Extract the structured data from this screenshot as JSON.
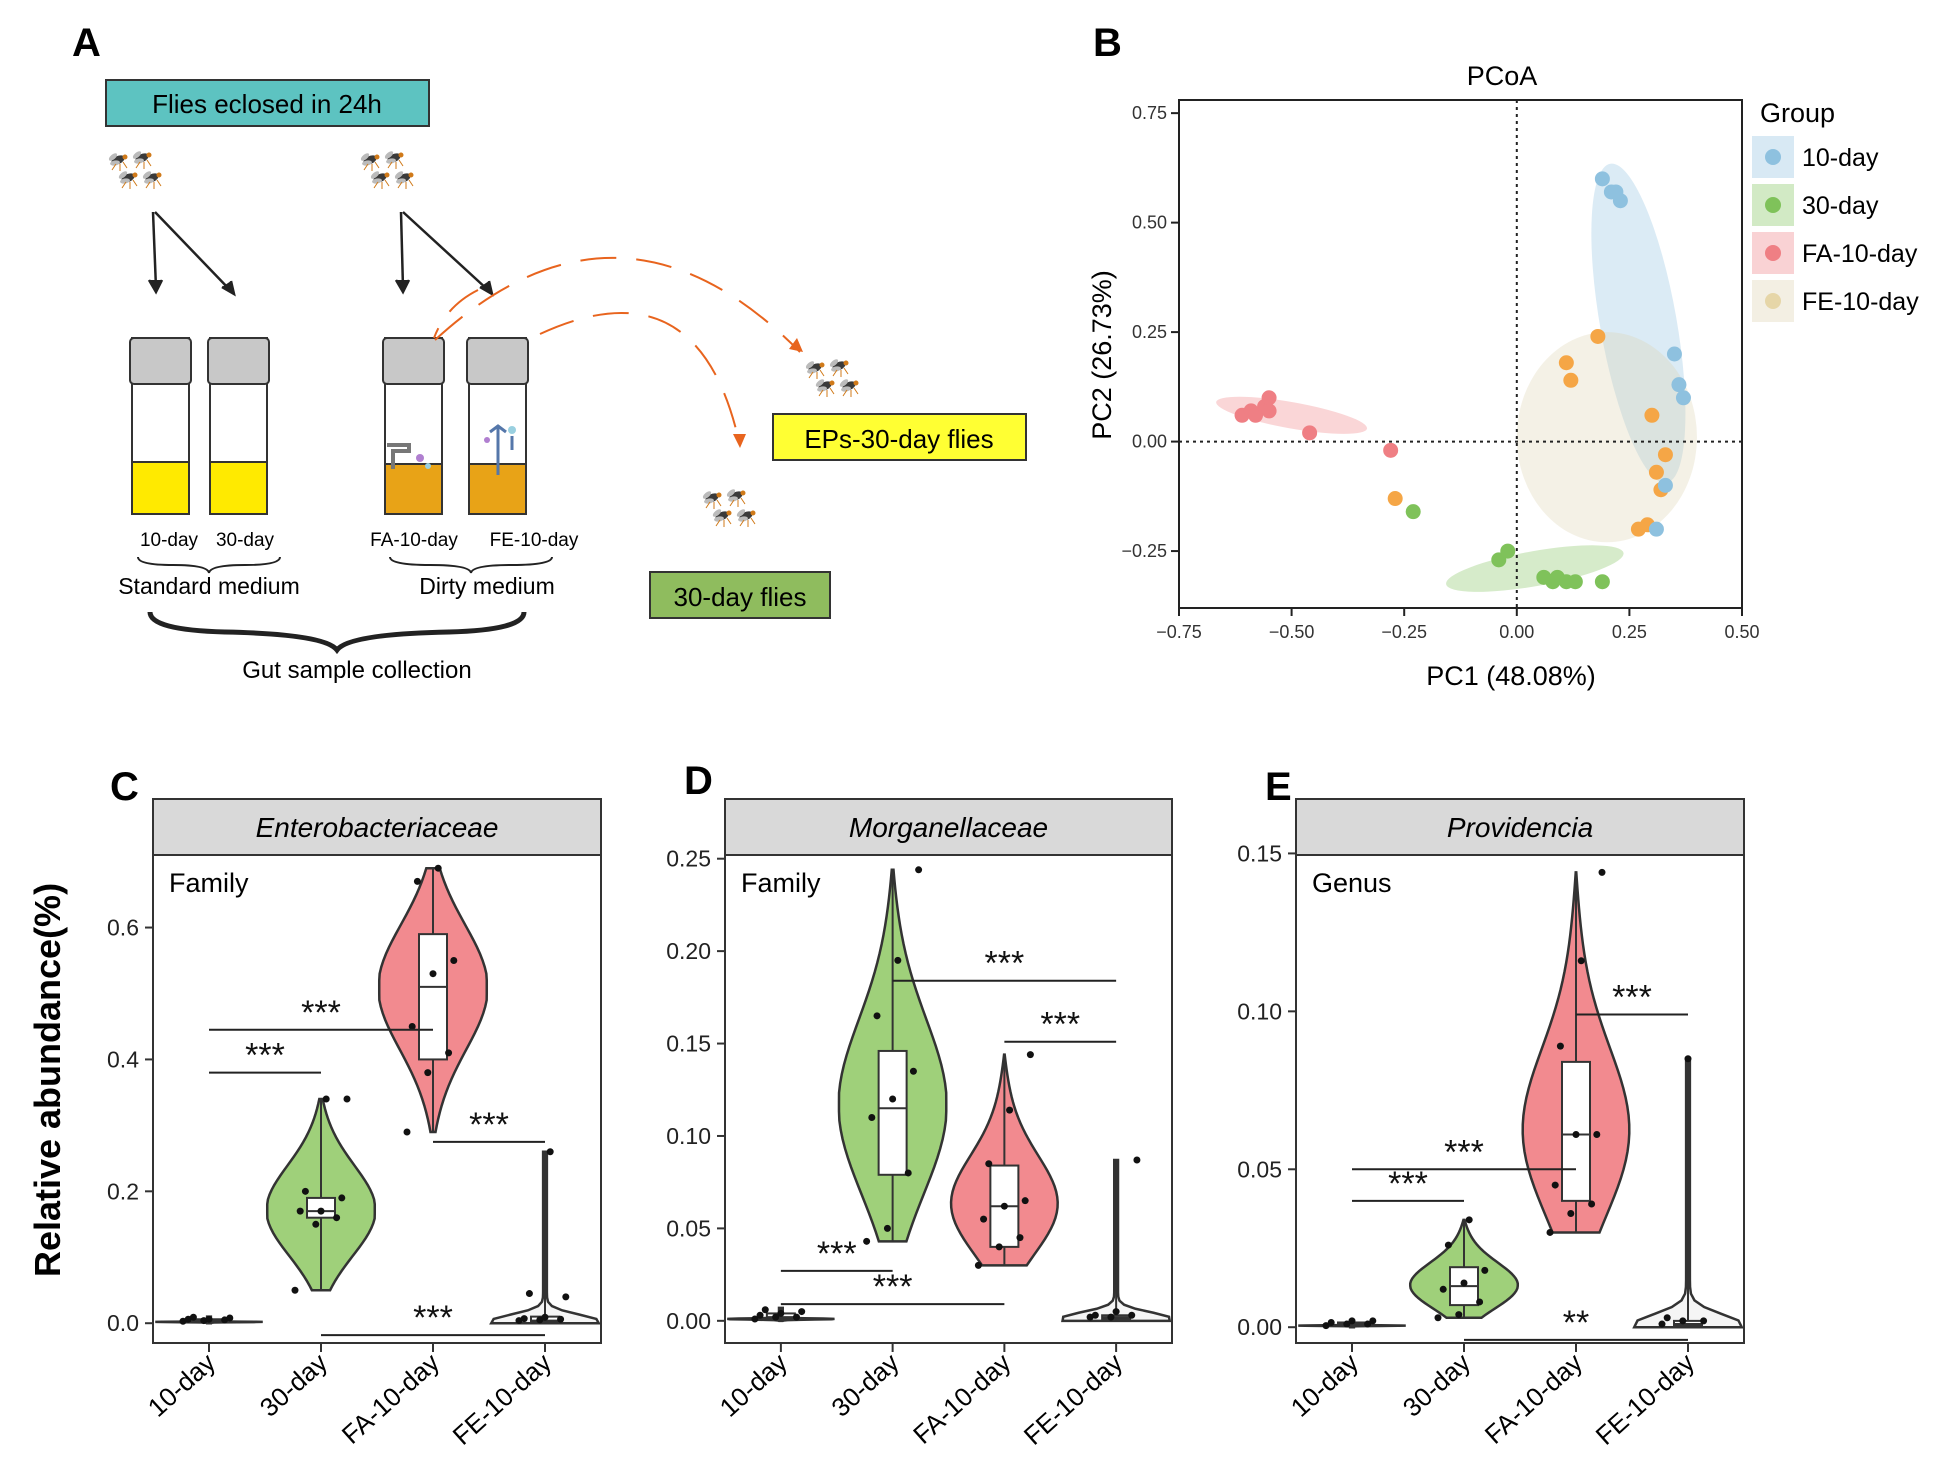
{
  "panel_letters": {
    "a": "A",
    "b": "B",
    "c": "C",
    "d": "D",
    "e": "E"
  },
  "schematic": {
    "eclosed_label": "Flies eclosed in  24h",
    "tube_labels": {
      "t10": "10-day",
      "t30": "30-day",
      "fa": "FA-10-day",
      "fe": "FE-10-day"
    },
    "standard_medium": "Standard medium",
    "dirty_medium": "Dirty medium",
    "gut_collection": "Gut  sample collection",
    "eps_label": "EPs-30-day flies",
    "flies30_label": "30-day flies",
    "colors": {
      "teal": "#5dc3c1",
      "yellow": "#ffff33",
      "green": "#8fbc5e",
      "medium_yellow": "#ffea00",
      "medium_dirty": "#e8a317",
      "arrow_orange": "#e8641e",
      "cap": "#c8c8c8"
    }
  },
  "groups": [
    {
      "name": "10-day",
      "color": "#8ec1df"
    },
    {
      "name": "30-day",
      "color": "#7fc25a"
    },
    {
      "name": "FA-10-day",
      "color": "#ef7f84"
    },
    {
      "name": "FE-10-day",
      "color": "#dcd2b0"
    }
  ],
  "chart_data": [
    {
      "type": "scatter",
      "title": "PCoA",
      "xlabel": "PC1 (48.08%)",
      "ylabel": "PC2 (26.73%)",
      "xlim": [
        -0.75,
        0.5
      ],
      "ylim": [
        -0.38,
        0.78
      ],
      "xticks": [
        "-0.75",
        "-0.50",
        "-0.25",
        "0.00",
        "0.25",
        "0.50"
      ],
      "yticks": [
        "-0.25",
        "0.00",
        "0.25",
        "0.50",
        "0.75"
      ],
      "legend_title": "Group",
      "series": [
        {
          "name": "10-day",
          "points": [
            [
              0.19,
              0.6
            ],
            [
              0.21,
              0.57
            ],
            [
              0.22,
              0.57
            ],
            [
              0.23,
              0.55
            ],
            [
              0.35,
              0.2
            ],
            [
              0.36,
              0.13
            ],
            [
              0.37,
              0.1
            ],
            [
              0.33,
              -0.1
            ],
            [
              0.31,
              -0.2
            ]
          ]
        },
        {
          "name": "30-day",
          "points": [
            [
              -0.23,
              -0.16
            ],
            [
              -0.04,
              -0.27
            ],
            [
              -0.02,
              -0.25
            ],
            [
              0.06,
              -0.31
            ],
            [
              0.08,
              -0.32
            ],
            [
              0.09,
              -0.31
            ],
            [
              0.11,
              -0.32
            ],
            [
              0.13,
              -0.32
            ],
            [
              0.19,
              -0.32
            ]
          ]
        },
        {
          "name": "FA-10-day",
          "points": [
            [
              -0.61,
              0.06
            ],
            [
              -0.59,
              0.07
            ],
            [
              -0.58,
              0.06
            ],
            [
              -0.56,
              0.08
            ],
            [
              -0.55,
              0.07
            ],
            [
              -0.55,
              0.1
            ],
            [
              -0.46,
              0.02
            ],
            [
              -0.28,
              -0.02
            ]
          ]
        },
        {
          "name": "FE-10-day",
          "points": [
            [
              -0.27,
              -0.13
            ],
            [
              0.11,
              0.18
            ],
            [
              0.12,
              0.14
            ],
            [
              0.18,
              0.24
            ],
            [
              0.3,
              0.06
            ],
            [
              0.31,
              -0.07
            ],
            [
              0.32,
              -0.11
            ],
            [
              0.33,
              -0.03
            ],
            [
              0.27,
              -0.2
            ],
            [
              0.29,
              -0.19
            ]
          ]
        }
      ],
      "ellipses": [
        {
          "group": "10-day",
          "center": [
            0.27,
            0.27
          ],
          "rx": 0.085,
          "ry": 0.37,
          "rotation_deg": -10
        },
        {
          "group": "30-day",
          "center": [
            0.04,
            -0.29
          ],
          "rx": 0.2,
          "ry": 0.04,
          "rotation_deg": -10
        },
        {
          "group": "FA-10-day",
          "center": [
            -0.5,
            0.06
          ],
          "rx": 0.17,
          "ry": 0.03,
          "rotation_deg": 10
        },
        {
          "group": "FE-10-day",
          "center": [
            0.2,
            0.01
          ],
          "rx": 0.2,
          "ry": 0.24,
          "rotation_deg": 0
        }
      ]
    },
    {
      "type": "violin",
      "panel": "C",
      "strip_title": "Enterobacteriaceae",
      "level": "Family",
      "ylabel": "Relative abundance(%)",
      "categories": [
        "10-day",
        "30-day",
        "FA-10-day",
        "FE-10-day"
      ],
      "ylim": [
        -0.03,
        0.71
      ],
      "yticks": [
        "0.0",
        "0.2",
        "0.4",
        "0.6"
      ],
      "series": [
        {
          "name": "10-day",
          "min": 0.0,
          "q1": 0.002,
          "median": 0.004,
          "q3": 0.006,
          "max": 0.01,
          "points": [
            0.003,
            0.004,
            0.005,
            0.006,
            0.006,
            0.008,
            0.009
          ]
        },
        {
          "name": "30-day",
          "min": 0.05,
          "q1": 0.16,
          "median": 0.17,
          "q3": 0.19,
          "max": 0.34,
          "points": [
            0.05,
            0.15,
            0.16,
            0.17,
            0.17,
            0.19,
            0.2,
            0.34,
            0.34
          ]
        },
        {
          "name": "FA-10-day",
          "min": 0.29,
          "q1": 0.4,
          "median": 0.51,
          "q3": 0.59,
          "max": 0.69,
          "points": [
            0.29,
            0.38,
            0.41,
            0.45,
            0.53,
            0.55,
            0.67,
            0.69
          ]
        },
        {
          "name": "FE-10-day",
          "min": 0.0,
          "q1": 0.002,
          "median": 0.004,
          "q3": 0.01,
          "max": 0.26,
          "points": [
            0.004,
            0.005,
            0.006,
            0.007,
            0.009,
            0.04,
            0.045,
            0.26
          ]
        }
      ],
      "significance": [
        {
          "from": "10-day",
          "to": "30-day",
          "y": 0.38,
          "label": "***"
        },
        {
          "from": "10-day",
          "to": "FA-10-day",
          "y": 0.445,
          "label": "***"
        },
        {
          "from": "FA-10-day",
          "to": "FE-10-day",
          "y": 0.275,
          "label": "***"
        },
        {
          "from": "30-day",
          "to": "FE-10-day",
          "y": -0.018,
          "label": "***"
        }
      ]
    },
    {
      "type": "violin",
      "panel": "D",
      "strip_title": "Morganellaceae",
      "level": "Family",
      "categories": [
        "10-day",
        "30-day",
        "FA-10-day",
        "FE-10-day"
      ],
      "ylim": [
        -0.012,
        0.252
      ],
      "yticks": [
        "0.00",
        "0.05",
        "0.10",
        "0.15",
        "0.20",
        "0.25"
      ],
      "series": [
        {
          "name": "10-day",
          "min": 0.0,
          "q1": 0.001,
          "median": 0.002,
          "q3": 0.004,
          "max": 0.007,
          "points": [
            0.001,
            0.002,
            0.002,
            0.003,
            0.004,
            0.005,
            0.006
          ]
        },
        {
          "name": "30-day",
          "min": 0.043,
          "q1": 0.079,
          "median": 0.115,
          "q3": 0.146,
          "max": 0.244,
          "points": [
            0.043,
            0.05,
            0.08,
            0.11,
            0.12,
            0.135,
            0.165,
            0.195,
            0.244
          ]
        },
        {
          "name": "FA-10-day",
          "min": 0.03,
          "q1": 0.04,
          "median": 0.062,
          "q3": 0.084,
          "max": 0.144,
          "points": [
            0.03,
            0.04,
            0.045,
            0.055,
            0.062,
            0.065,
            0.085,
            0.114,
            0.144
          ]
        },
        {
          "name": "FE-10-day",
          "min": 0.0,
          "q1": 0.001,
          "median": 0.002,
          "q3": 0.003,
          "max": 0.087,
          "points": [
            0.002,
            0.002,
            0.003,
            0.003,
            0.005,
            0.087
          ]
        }
      ],
      "significance": [
        {
          "from": "10-day",
          "to": "30-day",
          "y": 0.027,
          "label": "***"
        },
        {
          "from": "10-day",
          "to": "FA-10-day",
          "y": 0.009,
          "label": "***"
        },
        {
          "from": "30-day",
          "to": "FE-10-day",
          "y": 0.184,
          "label": "***"
        },
        {
          "from": "FA-10-day",
          "to": "FE-10-day",
          "y": 0.151,
          "label": "***"
        }
      ]
    },
    {
      "type": "violin",
      "panel": "E",
      "strip_title": "Providencia",
      "level": "Genus",
      "categories": [
        "10-day",
        "30-day",
        "FA-10-day",
        "FE-10-day"
      ],
      "ylim": [
        -0.005,
        0.1495
      ],
      "yticks": [
        "0.00",
        "0.05",
        "0.10",
        "0.15"
      ],
      "series": [
        {
          "name": "10-day",
          "min": 0.0,
          "q1": 0.0005,
          "median": 0.001,
          "q3": 0.0015,
          "max": 0.002,
          "points": [
            0.0005,
            0.001,
            0.001,
            0.0015,
            0.002,
            0.002
          ]
        },
        {
          "name": "30-day",
          "min": 0.003,
          "q1": 0.007,
          "median": 0.013,
          "q3": 0.019,
          "max": 0.034,
          "points": [
            0.003,
            0.004,
            0.008,
            0.012,
            0.014,
            0.018,
            0.026,
            0.034
          ]
        },
        {
          "name": "FA-10-day",
          "min": 0.03,
          "q1": 0.04,
          "median": 0.061,
          "q3": 0.084,
          "max": 0.144,
          "points": [
            0.03,
            0.036,
            0.039,
            0.045,
            0.061,
            0.061,
            0.089,
            0.116,
            0.144
          ]
        },
        {
          "name": "FE-10-day",
          "min": 0.0,
          "q1": 0.0005,
          "median": 0.001,
          "q3": 0.002,
          "max": 0.085,
          "points": [
            0.001,
            0.002,
            0.002,
            0.003,
            0.085
          ]
        }
      ],
      "significance": [
        {
          "from": "10-day",
          "to": "30-day",
          "y": 0.04,
          "label": "***"
        },
        {
          "from": "10-day",
          "to": "FA-10-day",
          "y": 0.05,
          "label": "***"
        },
        {
          "from": "FA-10-day",
          "to": "FE-10-day",
          "y": 0.099,
          "label": "***"
        },
        {
          "from": "30-day",
          "to": "FE-10-day",
          "y": -0.004,
          "label": "**"
        }
      ]
    }
  ]
}
